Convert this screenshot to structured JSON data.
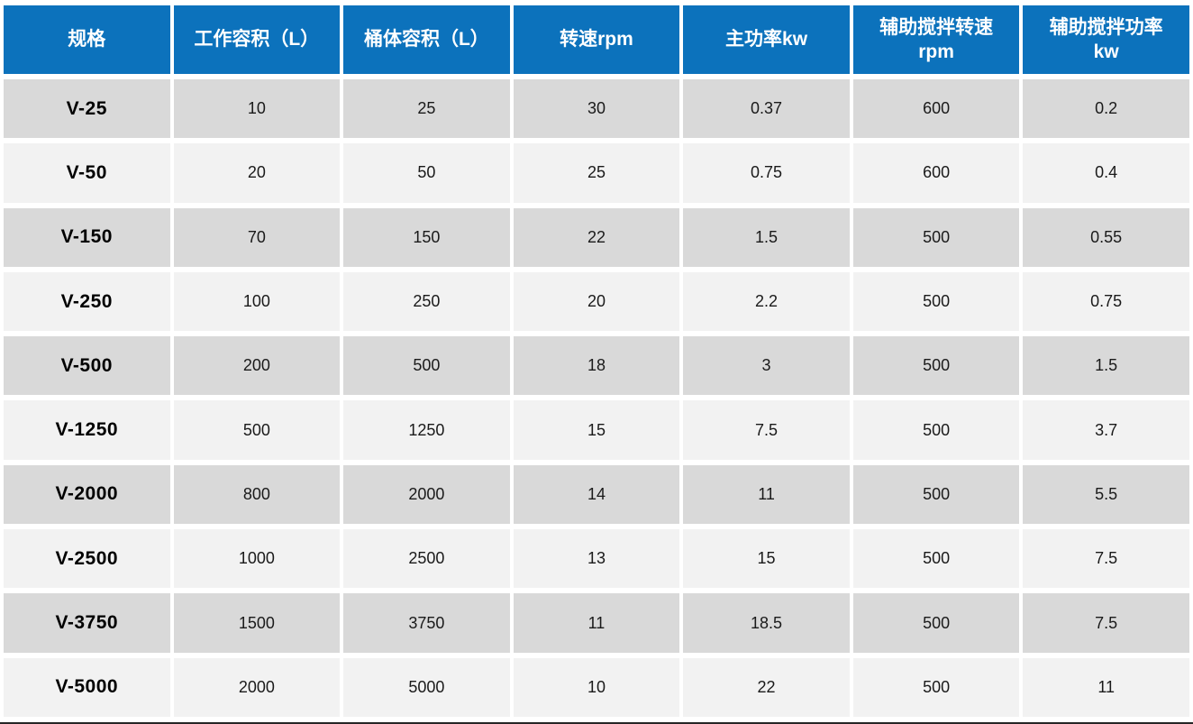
{
  "table": {
    "title": "mixer-specification-table",
    "headers": [
      "规格",
      "工作容积（L）",
      "桶体容积（L）",
      "转速rpm",
      "主功率kw",
      "辅助搅拌转速\nrpm",
      "辅助搅拌功率\nkw"
    ],
    "rows": [
      [
        "V-25",
        "10",
        "25",
        "30",
        "0.37",
        "600",
        "0.2"
      ],
      [
        "V-50",
        "20",
        "50",
        "25",
        "0.75",
        "600",
        "0.4"
      ],
      [
        "V-150",
        "70",
        "150",
        "22",
        "1.5",
        "500",
        "0.55"
      ],
      [
        "V-250",
        "100",
        "250",
        "20",
        "2.2",
        "500",
        "0.75"
      ],
      [
        "V-500",
        "200",
        "500",
        "18",
        "3",
        "500",
        "1.5"
      ],
      [
        "V-1250",
        "500",
        "1250",
        "15",
        "7.5",
        "500",
        "3.7"
      ],
      [
        "V-2000",
        "800",
        "2000",
        "14",
        "11",
        "500",
        "5.5"
      ],
      [
        "V-2500",
        "1000",
        "2500",
        "13",
        "15",
        "500",
        "7.5"
      ],
      [
        "V-3750",
        "1500",
        "3750",
        "11",
        "18.5",
        "500",
        "7.5"
      ],
      [
        "V-5000",
        "2000",
        "5000",
        "10",
        "22",
        "500",
        "11"
      ]
    ],
    "colors": {
      "header_bg": "#0c72bc",
      "header_text": "#ffffff",
      "row_odd_bg": "#d9d9d9",
      "row_even_bg": "#f2f2f2",
      "cell_text": "#1a1a1a",
      "bottom_border": "#262626"
    }
  }
}
